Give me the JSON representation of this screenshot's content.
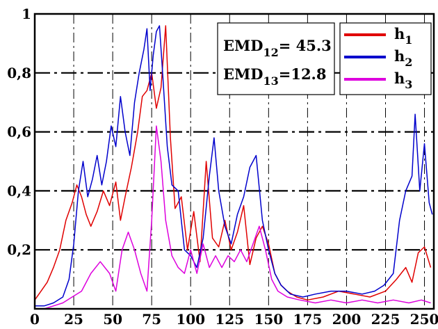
{
  "chart_data": {
    "type": "line",
    "title": "",
    "xlabel": "",
    "ylabel": "",
    "xlim": [
      0,
      256
    ],
    "ylim": [
      0,
      1
    ],
    "x_ticks": [
      "0",
      "25",
      "50",
      "75",
      "100",
      "125",
      "150",
      "175",
      "200",
      "225",
      "250"
    ],
    "y_ticks": [
      {
        "value": 0.2,
        "label": "0,2"
      },
      {
        "value": 0.4,
        "label": "0,4"
      },
      {
        "value": 0.6,
        "label": "0,6"
      },
      {
        "value": 0.8,
        "label": "0,8"
      },
      {
        "value": 1.0,
        "label": "1"
      }
    ],
    "grid": "dash-dot",
    "legend_position": "top-right",
    "annotations": [
      {
        "base": "EMD",
        "sub": "12",
        "rest": "= 45.3"
      },
      {
        "base": "EMD",
        "sub": "13",
        "rest": "=12.8"
      }
    ],
    "series": [
      {
        "base": "h",
        "sub": "1",
        "color": "#e00000",
        "points": [
          [
            0,
            0.03
          ],
          [
            4,
            0.06
          ],
          [
            8,
            0.09
          ],
          [
            12,
            0.14
          ],
          [
            16,
            0.2
          ],
          [
            20,
            0.3
          ],
          [
            24,
            0.36
          ],
          [
            27,
            0.42
          ],
          [
            30,
            0.38
          ],
          [
            33,
            0.32
          ],
          [
            36,
            0.28
          ],
          [
            40,
            0.33
          ],
          [
            44,
            0.4
          ],
          [
            48,
            0.35
          ],
          [
            52,
            0.43
          ],
          [
            55,
            0.3
          ],
          [
            58,
            0.38
          ],
          [
            62,
            0.48
          ],
          [
            66,
            0.6
          ],
          [
            69,
            0.72
          ],
          [
            72,
            0.74
          ],
          [
            75,
            0.8
          ],
          [
            78,
            0.68
          ],
          [
            81,
            0.75
          ],
          [
            84,
            0.96
          ],
          [
            87,
            0.58
          ],
          [
            90,
            0.34
          ],
          [
            94,
            0.38
          ],
          [
            98,
            0.2
          ],
          [
            102,
            0.33
          ],
          [
            106,
            0.16
          ],
          [
            110,
            0.5
          ],
          [
            114,
            0.24
          ],
          [
            118,
            0.21
          ],
          [
            122,
            0.3
          ],
          [
            126,
            0.2
          ],
          [
            130,
            0.26
          ],
          [
            134,
            0.35
          ],
          [
            138,
            0.15
          ],
          [
            142,
            0.24
          ],
          [
            146,
            0.28
          ],
          [
            150,
            0.22
          ],
          [
            154,
            0.12
          ],
          [
            158,
            0.08
          ],
          [
            162,
            0.06
          ],
          [
            168,
            0.04
          ],
          [
            175,
            0.03
          ],
          [
            185,
            0.04
          ],
          [
            195,
            0.06
          ],
          [
            205,
            0.05
          ],
          [
            215,
            0.04
          ],
          [
            225,
            0.06
          ],
          [
            232,
            0.1
          ],
          [
            238,
            0.14
          ],
          [
            242,
            0.09
          ],
          [
            246,
            0.19
          ],
          [
            250,
            0.21
          ],
          [
            254,
            0.14
          ]
        ]
      },
      {
        "base": "h",
        "sub": "2",
        "color": "#0000cc",
        "points": [
          [
            0,
            0.01
          ],
          [
            6,
            0.01
          ],
          [
            12,
            0.02
          ],
          [
            18,
            0.04
          ],
          [
            22,
            0.1
          ],
          [
            25,
            0.22
          ],
          [
            28,
            0.4
          ],
          [
            31,
            0.5
          ],
          [
            34,
            0.38
          ],
          [
            37,
            0.44
          ],
          [
            40,
            0.52
          ],
          [
            43,
            0.42
          ],
          [
            46,
            0.5
          ],
          [
            49,
            0.62
          ],
          [
            52,
            0.55
          ],
          [
            55,
            0.72
          ],
          [
            58,
            0.6
          ],
          [
            61,
            0.52
          ],
          [
            64,
            0.7
          ],
          [
            67,
            0.8
          ],
          [
            70,
            0.88
          ],
          [
            72,
            0.95
          ],
          [
            74,
            0.74
          ],
          [
            76,
            0.86
          ],
          [
            78,
            0.94
          ],
          [
            80,
            0.96
          ],
          [
            82,
            0.8
          ],
          [
            85,
            0.55
          ],
          [
            88,
            0.42
          ],
          [
            92,
            0.4
          ],
          [
            96,
            0.2
          ],
          [
            100,
            0.18
          ],
          [
            104,
            0.14
          ],
          [
            108,
            0.24
          ],
          [
            112,
            0.45
          ],
          [
            115,
            0.58
          ],
          [
            118,
            0.4
          ],
          [
            122,
            0.28
          ],
          [
            126,
            0.22
          ],
          [
            130,
            0.32
          ],
          [
            134,
            0.38
          ],
          [
            138,
            0.48
          ],
          [
            142,
            0.52
          ],
          [
            146,
            0.3
          ],
          [
            150,
            0.2
          ],
          [
            154,
            0.12
          ],
          [
            158,
            0.08
          ],
          [
            164,
            0.05
          ],
          [
            172,
            0.04
          ],
          [
            180,
            0.05
          ],
          [
            190,
            0.06
          ],
          [
            200,
            0.06
          ],
          [
            210,
            0.05
          ],
          [
            218,
            0.06
          ],
          [
            224,
            0.08
          ],
          [
            230,
            0.12
          ],
          [
            234,
            0.3
          ],
          [
            238,
            0.4
          ],
          [
            242,
            0.45
          ],
          [
            244,
            0.66
          ],
          [
            247,
            0.4
          ],
          [
            250,
            0.56
          ],
          [
            253,
            0.36
          ],
          [
            255,
            0.32
          ]
        ]
      },
      {
        "base": "h",
        "sub": "3",
        "color": "#dd00dd",
        "points": [
          [
            0,
            0.0
          ],
          [
            6,
            0.0
          ],
          [
            12,
            0.01
          ],
          [
            18,
            0.02
          ],
          [
            24,
            0.04
          ],
          [
            30,
            0.06
          ],
          [
            36,
            0.12
          ],
          [
            42,
            0.16
          ],
          [
            48,
            0.12
          ],
          [
            52,
            0.06
          ],
          [
            56,
            0.2
          ],
          [
            60,
            0.26
          ],
          [
            64,
            0.2
          ],
          [
            68,
            0.12
          ],
          [
            72,
            0.06
          ],
          [
            75,
            0.3
          ],
          [
            78,
            0.62
          ],
          [
            81,
            0.5
          ],
          [
            84,
            0.3
          ],
          [
            88,
            0.18
          ],
          [
            92,
            0.14
          ],
          [
            96,
            0.12
          ],
          [
            100,
            0.2
          ],
          [
            104,
            0.12
          ],
          [
            108,
            0.22
          ],
          [
            112,
            0.14
          ],
          [
            116,
            0.18
          ],
          [
            120,
            0.14
          ],
          [
            124,
            0.18
          ],
          [
            128,
            0.16
          ],
          [
            132,
            0.2
          ],
          [
            136,
            0.16
          ],
          [
            140,
            0.22
          ],
          [
            144,
            0.28
          ],
          [
            148,
            0.2
          ],
          [
            152,
            0.1
          ],
          [
            156,
            0.06
          ],
          [
            162,
            0.04
          ],
          [
            170,
            0.03
          ],
          [
            180,
            0.02
          ],
          [
            190,
            0.03
          ],
          [
            200,
            0.02
          ],
          [
            210,
            0.03
          ],
          [
            220,
            0.02
          ],
          [
            230,
            0.03
          ],
          [
            240,
            0.02
          ],
          [
            248,
            0.03
          ],
          [
            254,
            0.02
          ]
        ]
      }
    ]
  }
}
